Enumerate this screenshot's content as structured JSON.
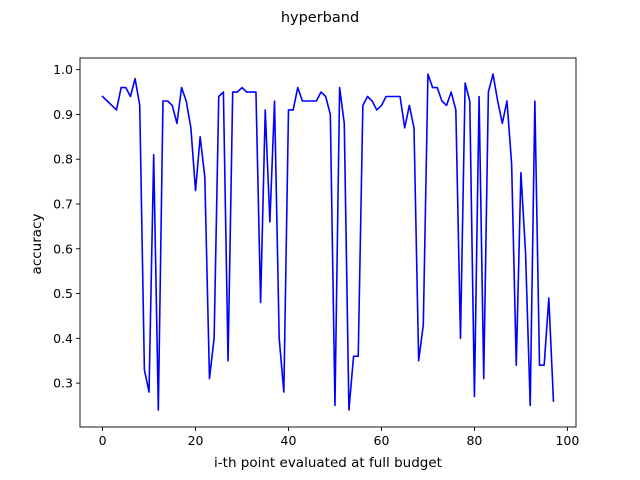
{
  "chart_data": {
    "type": "line",
    "title": "hyperband",
    "xlabel": "i-th point evaluated at full budget",
    "ylabel": "accuracy",
    "xlim": [
      -4.85,
      101.85
    ],
    "ylim": [
      0.202,
      1.026
    ],
    "xticks": [
      0,
      20,
      40,
      60,
      80,
      100
    ],
    "yticks": [
      0.3,
      0.4,
      0.5,
      0.6,
      0.7,
      0.8,
      0.9,
      1.0
    ],
    "xtick_labels": [
      "0",
      "20",
      "40",
      "60",
      "80",
      "100"
    ],
    "ytick_labels": [
      "0.3",
      "0.4",
      "0.5",
      "0.6",
      "0.7",
      "0.8",
      "0.9",
      "1.0"
    ],
    "grid": false,
    "series": [
      {
        "color": "#0000ff",
        "x": [
          0,
          1,
          2,
          3,
          4,
          5,
          6,
          7,
          8,
          9,
          10,
          11,
          12,
          13,
          14,
          15,
          16,
          17,
          18,
          19,
          20,
          21,
          22,
          23,
          24,
          25,
          26,
          27,
          28,
          29,
          30,
          31,
          32,
          33,
          34,
          35,
          36,
          37,
          38,
          39,
          40,
          41,
          42,
          43,
          44,
          45,
          46,
          47,
          48,
          49,
          50,
          51,
          52,
          53,
          54,
          55,
          56,
          57,
          58,
          59,
          60,
          61,
          62,
          63,
          64,
          65,
          66,
          67,
          68,
          69,
          70,
          71,
          72,
          73,
          74,
          75,
          76,
          77,
          78,
          79,
          80,
          81,
          82,
          83,
          84,
          85,
          86,
          87,
          88,
          89,
          90,
          91,
          92,
          93,
          94,
          95,
          96,
          97
        ],
        "y": [
          0.94,
          0.93,
          0.92,
          0.91,
          0.96,
          0.96,
          0.94,
          0.98,
          0.92,
          0.33,
          0.28,
          0.81,
          0.24,
          0.93,
          0.93,
          0.92,
          0.88,
          0.96,
          0.93,
          0.87,
          0.73,
          0.85,
          0.76,
          0.31,
          0.4,
          0.94,
          0.95,
          0.35,
          0.95,
          0.95,
          0.96,
          0.95,
          0.95,
          0.95,
          0.48,
          0.91,
          0.66,
          0.93,
          0.4,
          0.28,
          0.91,
          0.91,
          0.96,
          0.93,
          0.93,
          0.93,
          0.93,
          0.95,
          0.94,
          0.9,
          0.25,
          0.96,
          0.88,
          0.24,
          0.36,
          0.36,
          0.92,
          0.94,
          0.93,
          0.91,
          0.92,
          0.94,
          0.94,
          0.94,
          0.94,
          0.87,
          0.92,
          0.87,
          0.35,
          0.43,
          0.99,
          0.96,
          0.96,
          0.93,
          0.92,
          0.95,
          0.91,
          0.4,
          0.97,
          0.93,
          0.27,
          0.94,
          0.31,
          0.95,
          0.99,
          0.93,
          0.88,
          0.93,
          0.79,
          0.34,
          0.77,
          0.59,
          0.25,
          0.93,
          0.34,
          0.34,
          0.49,
          0.26
        ]
      }
    ]
  }
}
